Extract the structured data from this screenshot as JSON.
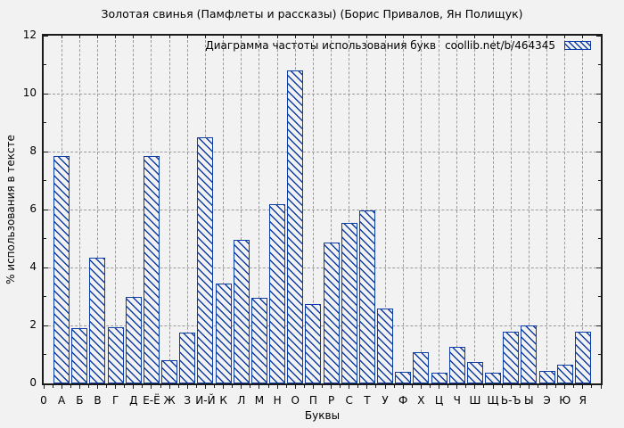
{
  "chart_data": {
    "type": "bar",
    "title": "Золотая свинья (Памфлеты и рассказы) (Борис Привалов, Ян Полищук)",
    "legend": {
      "label": "Диаграмма частоты использования букв",
      "source": "coollib.net/b/464345"
    },
    "xlabel": "Буквы",
    "ylabel": "% использования в тексте",
    "origin_label": "0",
    "ylim": [
      0,
      12
    ],
    "yticks": [
      0,
      2,
      4,
      6,
      8,
      10,
      12
    ],
    "grid": true,
    "legend_position": "top-right-inside",
    "bar_style": "hatched",
    "categories": [
      "А",
      "Б",
      "В",
      "Г",
      "Д",
      "Е-Ё",
      "Ж",
      "З",
      "И-Й",
      "К",
      "Л",
      "М",
      "Н",
      "О",
      "П",
      "Р",
      "С",
      "Т",
      "У",
      "Ф",
      "Х",
      "Ц",
      "Ч",
      "Ш",
      "Щ",
      "Ь-Ъ",
      "Ы",
      "Э",
      "Ю",
      "Я"
    ],
    "values": [
      7.85,
      1.9,
      4.33,
      1.93,
      3.0,
      7.85,
      0.8,
      1.75,
      8.5,
      3.45,
      4.95,
      2.95,
      6.2,
      10.8,
      2.75,
      4.85,
      5.55,
      5.97,
      2.6,
      0.4,
      1.08,
      0.37,
      1.25,
      0.73,
      0.37,
      1.8,
      2.0,
      0.43,
      0.66,
      1.8
    ]
  },
  "colors": {
    "background": "#f2f2f2",
    "bar": "#0f3da6",
    "grid": "#9a9a9a",
    "axis": "#1a1a1a",
    "text": "#000000"
  }
}
